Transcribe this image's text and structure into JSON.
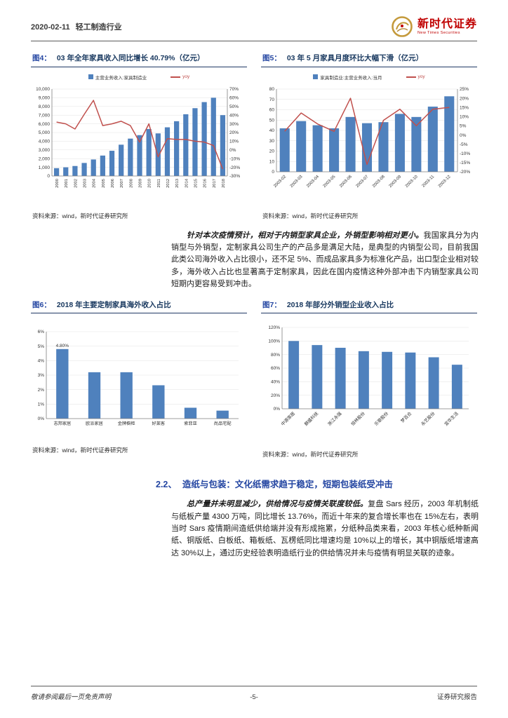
{
  "header": {
    "date": "2020-02-11",
    "industry": "轻工制造行业",
    "brand": {
      "name": "新时代证券",
      "name_en": "New Times Securities"
    }
  },
  "paragraph1": {
    "lead": "针对本次疫情预计，相对于内销型家具企业，外销型影响相对更小。",
    "body": "我国家具分为内销型与外销型，定制家具公司生产的产品多是满足大陆，是典型的内销型公司，目前我国此类公司海外收入占比很小，还不足 5%、而成品家具多为标准化产品，出口型企业相对较多，海外收入占比也显著高于定制家具，因此在国内疫情这种外部冲击下内销型家具公司短期内更容易受到冲击。"
  },
  "section": {
    "number": "2.2、",
    "title": "造纸与包装：文化纸需求趋于稳定，短期包装纸受冲击"
  },
  "paragraph2": {
    "lead": "总产量并未明显减少，供给情况与疫情关联度较低。",
    "body": "复盘 Sars 经历，2003 年机制纸与纸板产量 4300 万吨，同比增长 13.76%，而近十年来的复合增长率也在 15%左右，表明当时 Sars 疫情期间造纸供给端并没有形成拖累，分纸种品类来看，2003 年核心纸种新闻纸、铜版纸、白板纸、箱板纸、瓦楞纸同比增速均是 10%以上的增长，其中铜版纸增速高达 30%以上，通过历史经验表明造纸行业的供给情况并未与疫情有明显关联的迹象。"
  },
  "footer": {
    "disclaimer": "敬请参阅最后一页免责声明",
    "page": "-5-",
    "right": "证券研究报告"
  },
  "colors": {
    "bar": "#4F81BD",
    "line": "#C0504D",
    "accent_blue": "#2446A2",
    "title_navy": "#17375E",
    "brand_red": "#C00000"
  },
  "chart_data": [
    {
      "type": "bar",
      "label": "图4：",
      "title": "03 年全年家具收入同比增长 40.79%（亿元）",
      "source": "资料来源：wind，新时代证券研究所",
      "legend": [
        "主营业务收入:家具制造业",
        "yoy"
      ],
      "categories": [
        "2000",
        "2001",
        "2002",
        "2003",
        "2004",
        "2005",
        "2006",
        "2007",
        "2008",
        "2009",
        "2010",
        "2011",
        "2012",
        "2013",
        "2014",
        "2015",
        "2016",
        "2017",
        "2018"
      ],
      "series": [
        {
          "name": "主营业务收入:家具制造业",
          "kind": "bar",
          "axis": "left",
          "values": [
            900,
            1000,
            1150,
            1500,
            1900,
            2350,
            2900,
            3600,
            4300,
            4700,
            5400,
            4900,
            5600,
            6300,
            7100,
            7800,
            8500,
            9000,
            7000
          ]
        },
        {
          "name": "yoy",
          "kind": "line",
          "axis": "right",
          "values": [
            32,
            30,
            24,
            41,
            57,
            28,
            30,
            33,
            28,
            9,
            30,
            -8,
            13,
            12,
            12,
            10,
            9,
            5,
            -22
          ]
        }
      ],
      "left_axis": {
        "min": 0,
        "max": 10000,
        "step": 1000,
        "format": "thousands"
      },
      "right_axis": {
        "min": -30,
        "max": 70,
        "step": 10,
        "format": "percent"
      },
      "bar_color": "#4F81BD",
      "line_color": "#C0504D",
      "grid": true,
      "legend_position": "top"
    },
    {
      "type": "bar",
      "label": "图5：",
      "title": "03 年 5 月家具月度环比大幅下滑（亿元）",
      "source": "资料来源：wind，新时代证券研究所",
      "legend": [
        "家具制造业:主营业务收入:当月",
        "yoy"
      ],
      "categories": [
        "2003-02",
        "2003-03",
        "2003-04",
        "2003-05",
        "2003-06",
        "2003-07",
        "2003-08",
        "2003-09",
        "2003-10",
        "2003-11",
        "2003-12"
      ],
      "series": [
        {
          "name": "家具制造业:主营业务收入:当月",
          "kind": "bar",
          "axis": "left",
          "values": [
            42,
            49,
            45,
            42,
            53,
            47,
            48,
            56,
            53,
            63,
            73
          ]
        },
        {
          "name": "yoy",
          "kind": "line",
          "axis": "right",
          "values": [
            2,
            12,
            6,
            2,
            20,
            -16,
            8,
            14,
            5,
            14,
            15
          ]
        }
      ],
      "left_axis": {
        "min": 0,
        "max": 80,
        "step": 10,
        "format": "plain"
      },
      "right_axis": {
        "min": -20,
        "max": 25,
        "step": 5,
        "format": "percent"
      },
      "bar_color": "#4F81BD",
      "line_color": "#C0504D",
      "grid": true,
      "legend_position": "top"
    },
    {
      "type": "bar",
      "label": "图6：",
      "title": "2018 年主要定制家具海外收入占比",
      "source": "资料来源：wind，新时代证券研究所",
      "categories": [
        "志邦家居",
        "欧派家居",
        "金牌橱柜",
        "好莱客",
        "索菲亚",
        "尚品宅配"
      ],
      "values": [
        4.8,
        3.2,
        3.2,
        2.3,
        0.75,
        0.55
      ],
      "data_labels": [
        {
          "index": 0,
          "text": "4.80%"
        }
      ],
      "left_axis": {
        "min": 0,
        "max": 6,
        "step": 1,
        "format": "percent"
      },
      "bar_color": "#4F81BD",
      "grid": true,
      "legend_position": "none"
    },
    {
      "type": "bar",
      "label": "图7：",
      "title": "2018 年部分外销型企业收入占比",
      "source": "资料来源：wind，新时代证券研究所",
      "categories": [
        "中源家居",
        "麒盛科技",
        "浙江永强",
        "恒林股份",
        "乐歌股份",
        "梦百合",
        "永艺股份",
        "宜华生活"
      ],
      "values": [
        100,
        94,
        90,
        85,
        84,
        83,
        76,
        65
      ],
      "left_axis": {
        "min": 0,
        "max": 120,
        "step": 20,
        "format": "percent"
      },
      "bar_color": "#4F81BD",
      "grid": true,
      "legend_position": "none"
    }
  ]
}
